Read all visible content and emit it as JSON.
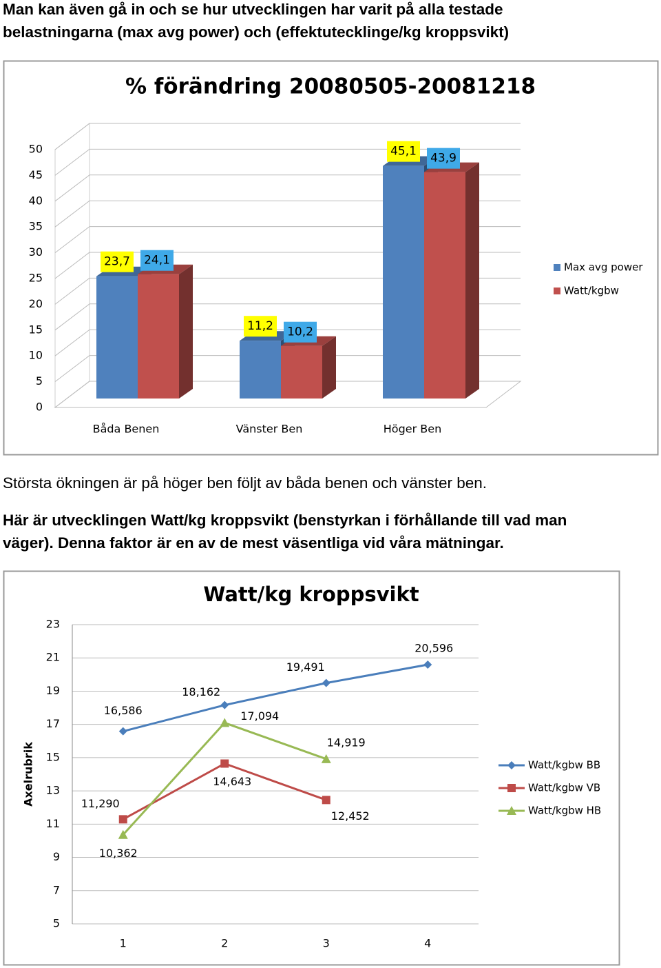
{
  "text": {
    "intro": [
      "Man kan även gå in och se hur utvecklingen har varit på alla testade",
      "belastningarna (max avg power) och (effektutecklinge/kg kroppsvikt)"
    ],
    "finding": "Största ökningen är på höger ben följt av båda benen och vänster ben.",
    "next": [
      "Här är utvecklingen Watt/kg kroppsvikt (benstyrkan i förhållande till vad man",
      "väger). Denna faktor är en av de mest väsentliga vid våra mätningar."
    ]
  },
  "chart_data": [
    {
      "type": "bar",
      "title": "% förändring 20080505-20081218",
      "categories": [
        "Båda Benen",
        "Vänster Ben",
        "Höger Ben"
      ],
      "series": [
        {
          "name": "Max avg power",
          "color": "#4f81bd",
          "label_color": "#ffff00",
          "values": [
            23.7,
            11.2,
            45.1
          ],
          "value_labels": [
            "23,7",
            "11,2",
            "45,1"
          ]
        },
        {
          "name": "Watt/kgbw",
          "color": "#c0504d",
          "label_color": "#3fa9e8",
          "values": [
            24.1,
            10.2,
            43.9
          ],
          "value_labels": [
            "24,1",
            "10,2",
            "43,9"
          ]
        }
      ],
      "ylim": [
        0,
        50
      ],
      "yticks": [
        0,
        5,
        10,
        15,
        20,
        25,
        30,
        35,
        40,
        45,
        50
      ],
      "grid": true,
      "legend": "right"
    },
    {
      "type": "line",
      "title": "Watt/kg kroppsvikt",
      "y_label": "Axelrubrik",
      "x": [
        1,
        2,
        3,
        4
      ],
      "xlim": [
        0.5,
        4.5
      ],
      "xticks": [
        1,
        2,
        3,
        4
      ],
      "series": [
        {
          "name": "Watt/kgbw BB",
          "color": "#4a7ebb",
          "marker": "diamond",
          "values": [
            16.586,
            18.162,
            19.491,
            20.596
          ],
          "value_labels": [
            "16,586",
            "18,162",
            "19,491",
            "20,596"
          ]
        },
        {
          "name": "Watt/kgbw VB",
          "color": "#be4b48",
          "marker": "square",
          "values": [
            11.29,
            14.643,
            12.452,
            null
          ],
          "value_labels": [
            "11,290",
            "14,643",
            "12,452",
            null
          ]
        },
        {
          "name": "Watt/kgbw HB",
          "color": "#98b954",
          "marker": "triangle",
          "values": [
            10.362,
            17.094,
            14.919,
            null
          ],
          "value_labels": [
            "10,362",
            "17,094",
            "14,919",
            null
          ]
        }
      ],
      "ylim": [
        5,
        23
      ],
      "yticks": [
        5,
        7,
        9,
        11,
        13,
        15,
        17,
        19,
        21,
        23
      ],
      "grid": true,
      "legend": "right"
    }
  ]
}
